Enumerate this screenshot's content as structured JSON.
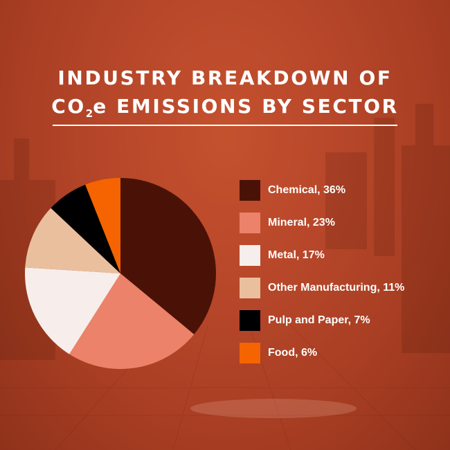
{
  "title": {
    "line1": "INDUSTRY BREAKDOWN OF",
    "line2_prefix": "CO",
    "line2_subscript": "2",
    "line2_suffix": "e EMISSIONS BY SECTOR"
  },
  "chart_data": {
    "type": "pie",
    "unit": "%",
    "legend_position": "right",
    "slices": [
      {
        "label": "Chemical, 36%",
        "name": "Chemical",
        "value": 36,
        "color": "#4a1206"
      },
      {
        "label": "Mineral, 23%",
        "name": "Mineral",
        "value": 23,
        "color": "#ec826a"
      },
      {
        "label": "Metal, 17%",
        "name": "Metal",
        "value": 17,
        "color": "#f7eeeb"
      },
      {
        "label": "Other Manufacturing, 11%",
        "name": "Other Manufacturing",
        "value": 11,
        "color": "#eabf9d"
      },
      {
        "label": "Pulp and Paper, 7%",
        "name": "Pulp and Paper",
        "value": 7,
        "color": "#000000"
      },
      {
        "label": "Food, 6%",
        "name": "Food",
        "value": 6,
        "color": "#f56400"
      }
    ]
  },
  "colors": {
    "background": "#b8472a",
    "text": "#ffffff"
  }
}
